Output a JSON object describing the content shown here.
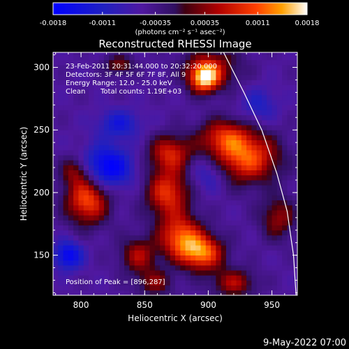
{
  "chart_data": {
    "type": "heatmap",
    "title": "Reconstructed RHESSI Image",
    "xlabel": "Heliocentric X (arcsec)",
    "ylabel": "Heliocentric Y (arcsec)",
    "xlim": [
      778,
      970
    ],
    "ylim": [
      118,
      312
    ],
    "xticks": [
      800,
      850,
      900,
      950
    ],
    "yticks": [
      150,
      200,
      250,
      300
    ],
    "colorbar": {
      "ticks": [
        -0.0018,
        -0.0011,
        -0.00035,
        0.00035,
        0.0011,
        0.0018
      ],
      "tick_labels": [
        "-0.0018",
        "-0.0011",
        "-0.00035",
        "0.00035",
        "0.0011",
        "0.0018"
      ],
      "unit_label": "(photons cm⁻² s⁻¹ asec⁻²)",
      "range": [
        -0.0018,
        0.0018
      ],
      "colormap": "blue-purple-red-yellow-white"
    },
    "annotations": {
      "time": "23-Feb-2011 20:31:44.000 to 20:32:20.000",
      "detectors": "Detectors: 3F 4F 5F 6F 7F 8F, All 9",
      "energy": "Energy Range: 12.0 - 25.0 keV",
      "clean_prefix": "Clean",
      "counts": "Total counts: 1.19E+03",
      "peak": "Position of Peak = [896,287]"
    },
    "blobs": [
      {
        "x": 897,
        "y": 292,
        "sx": 8,
        "sy": 8,
        "amp": 0.0019
      },
      {
        "x": 903,
        "y": 300,
        "sx": 16,
        "sy": 12,
        "amp": 0.0009
      },
      {
        "x": 930,
        "y": 228,
        "sx": 18,
        "sy": 14,
        "amp": 0.0016
      },
      {
        "x": 912,
        "y": 245,
        "sx": 14,
        "sy": 10,
        "amp": 0.0011
      },
      {
        "x": 870,
        "y": 232,
        "sx": 12,
        "sy": 10,
        "amp": 0.0012
      },
      {
        "x": 868,
        "y": 200,
        "sx": 12,
        "sy": 14,
        "amp": 0.0014
      },
      {
        "x": 878,
        "y": 165,
        "sx": 12,
        "sy": 12,
        "amp": 0.0015
      },
      {
        "x": 895,
        "y": 152,
        "sx": 12,
        "sy": 10,
        "amp": 0.0017
      },
      {
        "x": 805,
        "y": 195,
        "sx": 12,
        "sy": 14,
        "amp": 0.0016
      },
      {
        "x": 795,
        "y": 218,
        "sx": 8,
        "sy": 8,
        "amp": 0.0008
      },
      {
        "x": 845,
        "y": 150,
        "sx": 10,
        "sy": 10,
        "amp": 0.001
      },
      {
        "x": 920,
        "y": 128,
        "sx": 12,
        "sy": 8,
        "amp": 0.001
      },
      {
        "x": 955,
        "y": 180,
        "sx": 10,
        "sy": 12,
        "amp": 0.0009
      },
      {
        "x": 830,
        "y": 302,
        "sx": 8,
        "sy": 6,
        "amp": 0.0008
      },
      {
        "x": 858,
        "y": 128,
        "sx": 10,
        "sy": 8,
        "amp": 0.0008
      },
      {
        "x": 820,
        "y": 220,
        "sx": 14,
        "sy": 12,
        "amp": -0.0014
      },
      {
        "x": 790,
        "y": 150,
        "sx": 8,
        "sy": 8,
        "amp": -0.0012
      },
      {
        "x": 830,
        "y": 255,
        "sx": 12,
        "sy": 8,
        "amp": -0.0008
      },
      {
        "x": 900,
        "y": 215,
        "sx": 10,
        "sy": 10,
        "amp": -0.0006
      },
      {
        "x": 940,
        "y": 270,
        "sx": 10,
        "sy": 10,
        "amp": -0.0006
      }
    ],
    "limb": [
      {
        "x": 912,
        "y": 312
      },
      {
        "x": 928,
        "y": 280
      },
      {
        "x": 942,
        "y": 250
      },
      {
        "x": 954,
        "y": 215
      },
      {
        "x": 962,
        "y": 185
      },
      {
        "x": 967,
        "y": 150
      },
      {
        "x": 969,
        "y": 118
      }
    ]
  },
  "footer": {
    "timestamp": "9-May-2022 07:00"
  }
}
